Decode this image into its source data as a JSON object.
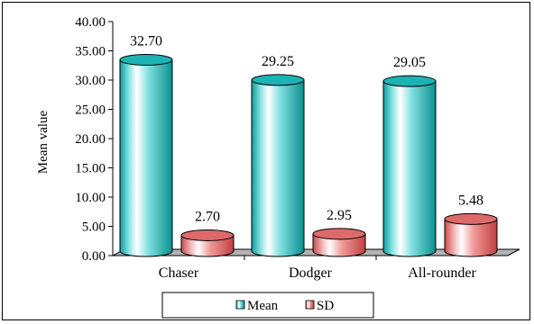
{
  "chart_data": {
    "type": "bar",
    "style": "3d-cylinder",
    "categories": [
      "Chaser",
      "Dodger",
      "All-rounder"
    ],
    "series": [
      {
        "name": "Mean",
        "values": [
          32.7,
          29.25,
          29.05
        ],
        "labels": [
          "32.70",
          "29.25",
          "29.05"
        ],
        "color": "#19c3c3"
      },
      {
        "name": "SD",
        "values": [
          2.7,
          2.95,
          5.48
        ],
        "labels": [
          "2.70",
          "2.95",
          "5.48"
        ],
        "color": "#e87474"
      }
    ],
    "title": "",
    "xlabel": "",
    "ylabel": "Mean value",
    "ylim": [
      0,
      40
    ],
    "yticks": [
      "0.00",
      "5.00",
      "10.00",
      "15.00",
      "20.00",
      "25.00",
      "30.00",
      "35.00",
      "40.00"
    ],
    "grid": false,
    "legend_position": "bottom"
  }
}
